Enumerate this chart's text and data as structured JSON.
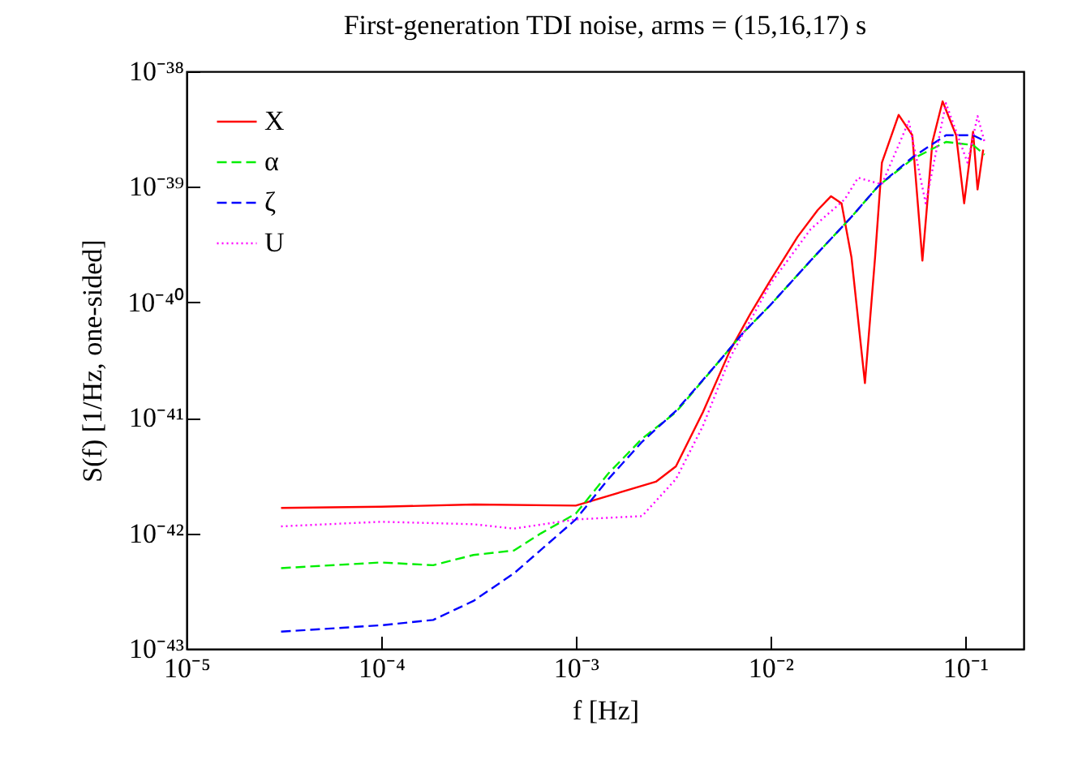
{
  "chart_data": {
    "type": "line",
    "title": "First-generation TDI noise, arms = (15,16,17) s",
    "xlabel": "f [Hz]",
    "ylabel": "S(f) [1/Hz, one-sided]",
    "log": "xy",
    "grid": false,
    "legend": "top left",
    "marker": "none",
    "xlim": [
      1e-05,
      0.2
    ],
    "ylim": [
      1e-43,
      1e-38
    ],
    "xticks": [
      {
        "value": 1e-05,
        "label": "10⁻⁵"
      },
      {
        "value": 0.0001,
        "label": "10⁻⁴"
      },
      {
        "value": 0.001,
        "label": "10⁻³"
      },
      {
        "value": 0.01,
        "label": "10⁻²"
      },
      {
        "value": 0.1,
        "label": "10⁻¹"
      }
    ],
    "yticks": [
      {
        "value": 1e-43,
        "label": "10⁻⁴³"
      },
      {
        "value": 1e-42,
        "label": "10⁻⁴²"
      },
      {
        "value": 1e-41,
        "label": "10⁻⁴¹"
      },
      {
        "value": 1e-40,
        "label": "10⁻⁴⁰"
      },
      {
        "value": 1e-39,
        "label": "10⁻³⁹"
      },
      {
        "value": 1e-38,
        "label": "10⁻³⁸"
      }
    ],
    "series": [
      {
        "name": "X",
        "color": "#ff0000",
        "line_style": "solid",
        "x": [
          3.06e-05,
          0.0001,
          0.0003,
          0.001,
          0.00258,
          0.00327,
          0.0045,
          0.00619,
          0.00787,
          0.01,
          0.0138,
          0.0175,
          0.0205,
          0.0232,
          0.0261,
          0.0306,
          0.0345,
          0.0374,
          0.0456,
          0.0536,
          0.0604,
          0.068,
          0.0767,
          0.09,
          0.099,
          0.11,
          0.116,
          0.124
        ],
        "values": [
          1.66e-42,
          1.7e-42,
          1.78e-42,
          1.74e-42,
          2.8e-42,
          3.8e-42,
          1.12e-41,
          3.8e-41,
          7.9e-41,
          1.55e-40,
          3.7e-40,
          6.3e-40,
          8.3e-40,
          7.2e-40,
          2.45e-40,
          2e-41,
          2.45e-40,
          1.62e-39,
          4.2e-39,
          2.8e-39,
          2.3e-40,
          2.45e-39,
          5.5e-39,
          2.8e-39,
          7.2e-40,
          3e-39,
          9.5e-40,
          2.1e-39
        ]
      },
      {
        "name": "α",
        "color": "#00ee00",
        "line_style": "dashed",
        "x": [
          3.06e-05,
          0.0001,
          0.000185,
          0.000298,
          0.000481,
          0.000662,
          0.001,
          0.00147,
          0.00219,
          0.00327,
          0.00528,
          0.00728,
          0.01,
          0.0161,
          0.0261,
          0.0359,
          0.0536,
          0.0798,
          0.11,
          0.126
        ],
        "values": [
          5e-43,
          5.6e-43,
          5.3e-43,
          6.5e-43,
          7.1e-43,
          1e-42,
          1.48e-42,
          3.3e-42,
          6.6e-42,
          1.12e-41,
          2.9e-41,
          5.5e-41,
          9.5e-41,
          2.3e-40,
          5.5e-40,
          1.02e-39,
          1.74e-39,
          2.45e-39,
          2.3e-39,
          1.9e-39
        ]
      },
      {
        "name": "ζ",
        "color": "#0000ff",
        "line_style": "dashed",
        "x": [
          3.06e-05,
          0.0001,
          0.000185,
          0.000298,
          0.000481,
          0.001,
          0.00147,
          0.00219,
          0.00327,
          0.00528,
          0.00728,
          0.01,
          0.0161,
          0.0261,
          0.0359,
          0.0536,
          0.0798,
          0.11,
          0.126
        ],
        "values": [
          1.41e-43,
          1.6e-43,
          1.78e-43,
          2.6e-43,
          4.5e-43,
          1.32e-42,
          2.95e-42,
          6.2e-42,
          1.15e-41,
          2.9e-41,
          5.5e-41,
          9.5e-41,
          2.3e-40,
          5.5e-40,
          1.02e-39,
          1.8e-39,
          2.8e-39,
          2.8e-39,
          2.5e-39
        ]
      },
      {
        "name": "U",
        "color": "#ff00ff",
        "line_style": "dotted",
        "x": [
          3.06e-05,
          0.0001,
          0.000298,
          0.000481,
          0.001,
          0.00219,
          0.00327,
          0.0045,
          0.00619,
          0.01,
          0.0161,
          0.0241,
          0.0282,
          0.0374,
          0.0514,
          0.0628,
          0.0798,
          0.103,
          0.116,
          0.126
        ],
        "values": [
          1.15e-42,
          1.26e-42,
          1.2e-42,
          1.1e-42,
          1.32e-42,
          1.41e-42,
          2.95e-42,
          8.5e-42,
          3.3e-41,
          1.45e-40,
          4.3e-40,
          7.8e-40,
          1.2e-39,
          1.05e-39,
          3.7e-39,
          7.2e-40,
          5.3e-39,
          1.62e-39,
          4.1e-39,
          2.45e-39
        ]
      }
    ]
  }
}
